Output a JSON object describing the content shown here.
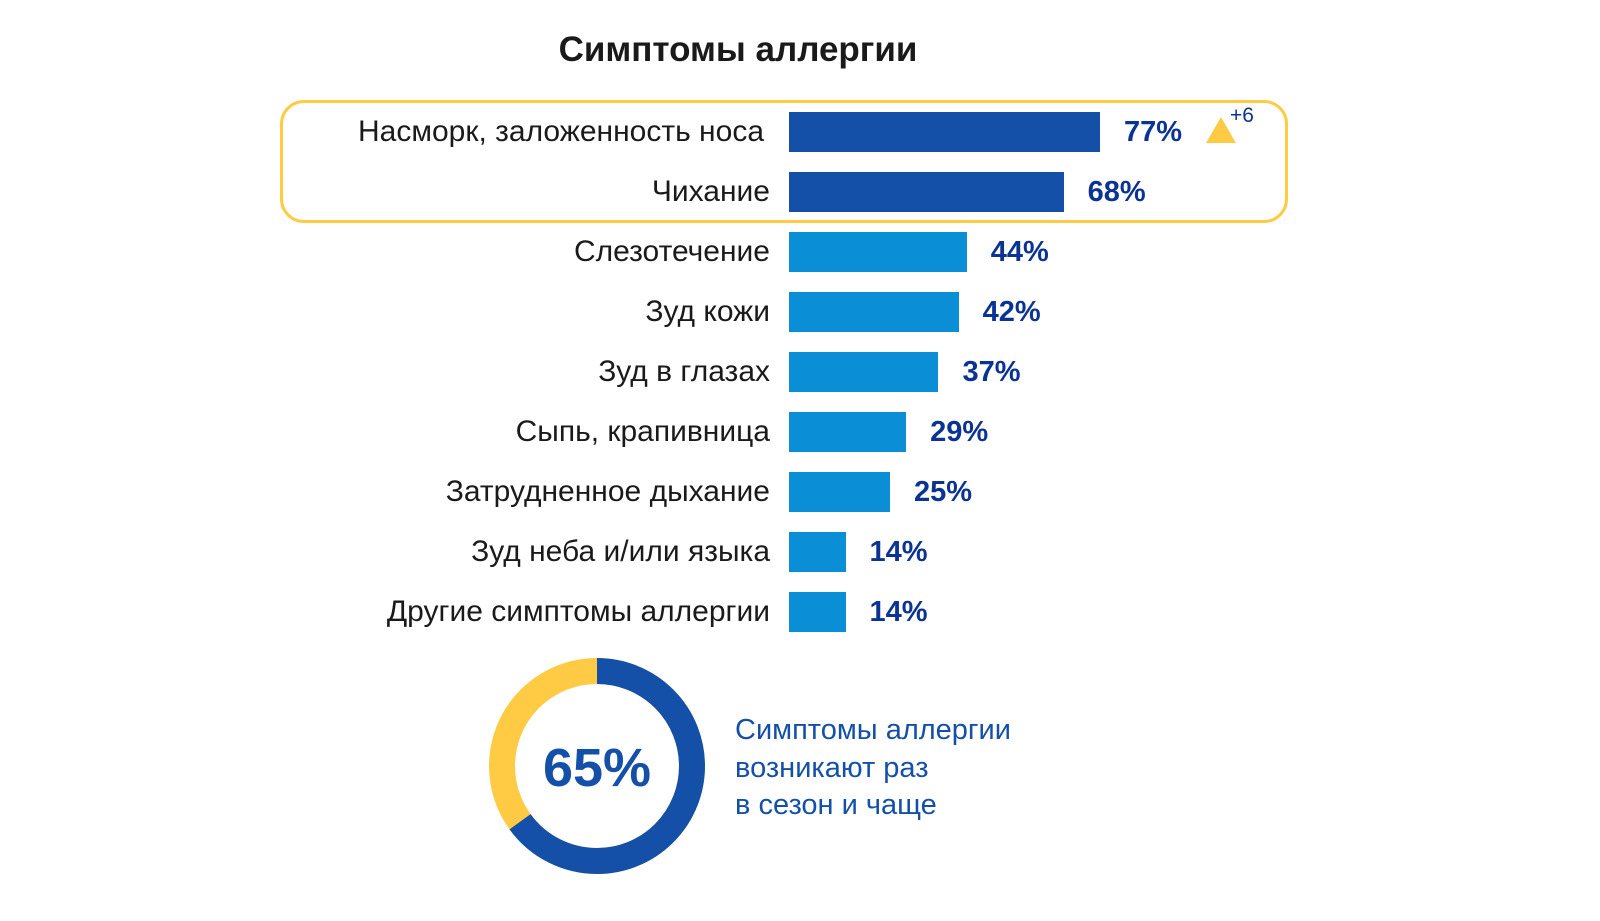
{
  "chart_data": {
    "type": "bar",
    "title": "Симптомы аллергии",
    "orientation": "horizontal",
    "categories": [
      "Насморк, заложенность носа",
      "Чихание",
      "Слезотечение",
      "Зуд кожи",
      "Зуд в глазах",
      "Сыпь, крапивница",
      "Затрудненное дыхание",
      "Зуд неба и/или языка",
      "Другие симптомы аллергии"
    ],
    "values": [
      77,
      68,
      44,
      42,
      37,
      29,
      25,
      14,
      14
    ],
    "value_labels": [
      "77%",
      "68%",
      "44%",
      "42%",
      "37%",
      "29%",
      "25%",
      "14%",
      "14%"
    ],
    "highlighted": [
      true,
      true,
      false,
      false,
      false,
      false,
      false,
      false,
      false
    ],
    "annotation": {
      "category": "Насморк, заложенность носа",
      "delta": "+6",
      "direction": "up"
    },
    "colors": {
      "highlight_bar": "#1450A8",
      "bar": "#0A8ED6",
      "value_text": "#0B3394",
      "accent": "#FFCB45"
    },
    "donut": {
      "value": 65,
      "label": "65%",
      "caption": [
        "Симптомы аллергии",
        "возникают раз",
        "в сезон и чаще"
      ],
      "colors": {
        "main": "#1450A8",
        "rest": "#FFCB45"
      }
    }
  }
}
